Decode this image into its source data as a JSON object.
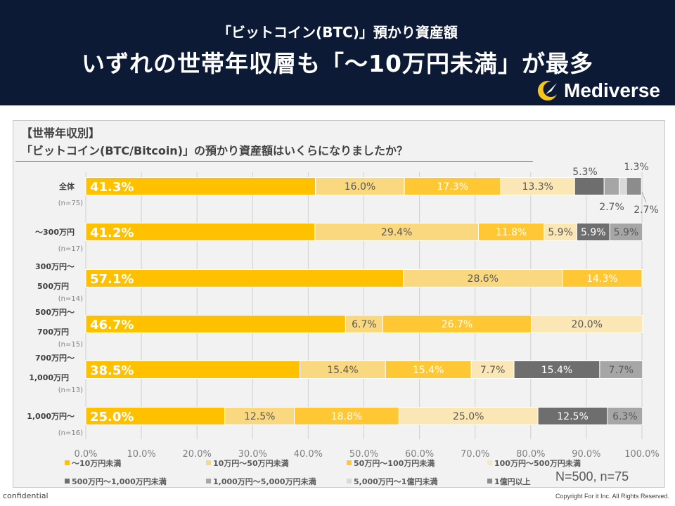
{
  "header": {
    "line1": "「ビットコイン(BTC)」預かり資産額",
    "line2": "いずれの世帯年収層も「～10万円未満」が最多",
    "logo_text": "Mediverse"
  },
  "chart_title": {
    "line1": "【世帯年収別】",
    "line2": "「ビットコイン(BTC/Bitcoin)」の預かり資産額はいくらになりましたか？"
  },
  "note": "N=500, n=75",
  "footer": {
    "left": "confidential",
    "right": "Copyright For it Inc. All Rights Reserved."
  },
  "colors": {
    "header_bg": "#0d1a36",
    "logo_accent": "#f5c518",
    "panel_bg": "#f2f2f2"
  },
  "chart_data": {
    "type": "bar",
    "orientation": "horizontal",
    "stacked": true,
    "percent": true,
    "xlim": [
      0,
      100
    ],
    "xticks": [
      "0.0%",
      "10.0%",
      "20.0%",
      "30.0%",
      "40.0%",
      "50.0%",
      "60.0%",
      "70.0%",
      "80.0%",
      "90.0%",
      "100.0%"
    ],
    "legend_position": "bottom",
    "grid": true,
    "series": [
      {
        "name": "～10万円未満",
        "color": "#ffc000",
        "label_color": "#ffffff",
        "label_weight": "bold"
      },
      {
        "name": "10万円～50万円未満",
        "color": "#fad880",
        "label_color": "#595959",
        "label_weight": "normal"
      },
      {
        "name": "50万円～100万円未満",
        "color": "#ffc733",
        "label_color": "#ffffff",
        "label_weight": "normal"
      },
      {
        "name": "100万円～500万円未満",
        "color": "#fbe7b5",
        "label_color": "#595959",
        "label_weight": "normal"
      },
      {
        "name": "500万円～1,000万円未満",
        "color": "#6e6e6e",
        "label_color": "#ffffff",
        "label_weight": "normal"
      },
      {
        "name": "1,000万円～5,000万円未満",
        "color": "#a6a6a6",
        "label_color": "#595959",
        "label_weight": "normal"
      },
      {
        "name": "5,000万円～1億円未満",
        "color": "#d9d9d9",
        "label_color": "#595959",
        "label_weight": "normal"
      },
      {
        "name": "1億円以上",
        "color": "#8c8c8c",
        "label_color": "#595959",
        "label_weight": "normal"
      }
    ],
    "rows": [
      {
        "label_lines": [
          "全体"
        ],
        "n": "(n=75)",
        "values": [
          41.3,
          16.0,
          17.3,
          13.3,
          5.3,
          2.7,
          1.3,
          2.7
        ],
        "labels": [
          "41.3%",
          "16.0%",
          "17.3%",
          "13.3%",
          "5.3%",
          "2.7%",
          "1.3%",
          "2.7%"
        ]
      },
      {
        "label_lines": [
          "～300万円"
        ],
        "n": "(n=17)",
        "values": [
          41.2,
          29.4,
          11.8,
          5.9,
          5.9,
          5.9,
          0,
          0
        ],
        "labels": [
          "41.2%",
          "29.4%",
          "11.8%",
          "5.9%",
          "5.9%",
          "5.9%",
          "",
          ""
        ]
      },
      {
        "label_lines": [
          "300万円～",
          "500万円"
        ],
        "n": "(n=14)",
        "values": [
          57.1,
          28.6,
          14.3,
          0,
          0,
          0,
          0,
          0
        ],
        "labels": [
          "57.1%",
          "28.6%",
          "14.3%",
          "",
          "",
          "",
          "",
          ""
        ]
      },
      {
        "label_lines": [
          "500万円～",
          "700万円"
        ],
        "n": "(n=15)",
        "values": [
          46.7,
          6.7,
          26.7,
          20.0,
          0,
          0,
          0,
          0
        ],
        "labels": [
          "46.7%",
          "6.7%",
          "26.7%",
          "20.0%",
          "",
          "",
          "",
          ""
        ]
      },
      {
        "label_lines": [
          "700万円～",
          "1,000万円"
        ],
        "n": "(n=13)",
        "values": [
          38.5,
          15.4,
          15.4,
          7.7,
          15.4,
          7.7,
          0,
          0
        ],
        "labels": [
          "38.5%",
          "15.4%",
          "15.4%",
          "7.7%",
          "15.4%",
          "7.7%",
          "",
          ""
        ]
      },
      {
        "label_lines": [
          "1,000万円～"
        ],
        "n": "(n=16)",
        "values": [
          25.0,
          12.5,
          18.8,
          25.0,
          12.5,
          6.3,
          0,
          0
        ],
        "labels": [
          "25.0%",
          "12.5%",
          "18.8%",
          "25.0%",
          "12.5%",
          "6.3%",
          "",
          ""
        ]
      }
    ]
  }
}
